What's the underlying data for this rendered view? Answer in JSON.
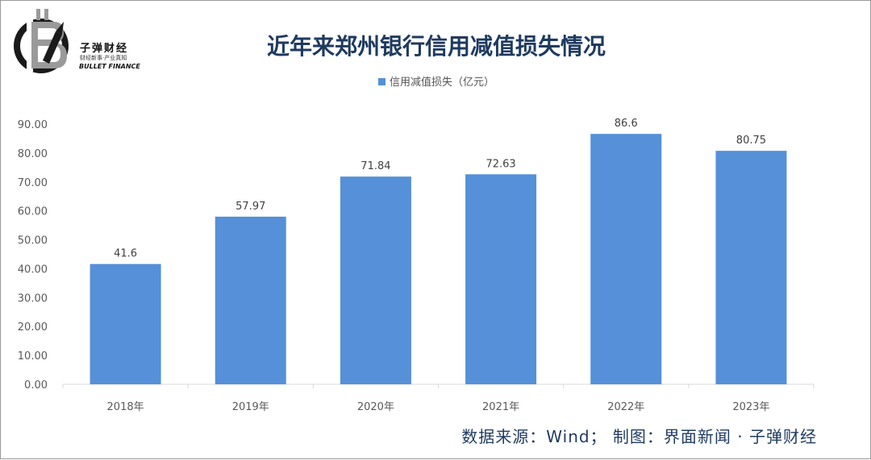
{
  "header": {
    "title": "近年来郑州银行信用减值损失情况"
  },
  "logo": {
    "cn": "子弹财经",
    "sub": "财经新事·产业真知",
    "en": "BULLET FINANCE"
  },
  "footer": {
    "source": "数据来源：Wind； 制图：界面新闻 · 子弹财经"
  },
  "colors": {
    "bar": "#5590d8",
    "title": "#1f3a5f",
    "axis": "#d9d9d9"
  },
  "chart_data": {
    "type": "bar",
    "title": "近年来郑州银行信用减值损失情况",
    "categories": [
      "2018年",
      "2019年",
      "2020年",
      "2021年",
      "2022年",
      "2023年"
    ],
    "series": [
      {
        "name": "信用减值损失（亿元）",
        "values": [
          41.6,
          57.97,
          71.84,
          72.63,
          86.6,
          80.75
        ],
        "labels": [
          "41.6",
          "57.97",
          "71.84",
          "72.63",
          "86.6",
          "80.75"
        ]
      }
    ],
    "ylim": [
      0,
      90
    ],
    "yticks": [
      "0.00",
      "10.00",
      "20.00",
      "30.00",
      "40.00",
      "50.00",
      "60.00",
      "70.00",
      "80.00",
      "90.00"
    ],
    "grid": false,
    "legend": "top-center"
  }
}
